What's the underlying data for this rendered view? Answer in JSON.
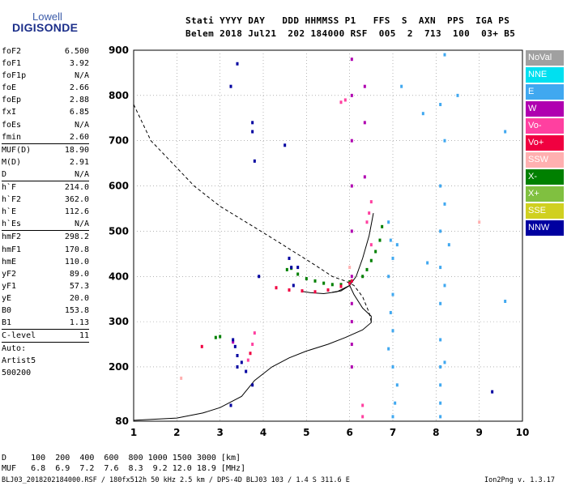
{
  "logo": {
    "top": "Lowell",
    "bottom": "DIGISONDE"
  },
  "header": {
    "line1": "Stati YYYY DAY   DDD HHMMSS P1   FFS  S  AXN  PPS  IGA PS",
    "line2": "Belem 2018 Jul21  202 184000 RSF  005  2  713  100  03+ B5"
  },
  "params": [
    [
      "foF2",
      "6.500"
    ],
    [
      "foF1",
      "3.92"
    ],
    [
      "foF1p",
      "N/A"
    ],
    [
      "foE",
      "2.66"
    ],
    [
      "foEp",
      "2.88"
    ],
    [
      "fxI",
      "6.85"
    ],
    [
      "foEs",
      "N/A"
    ],
    [
      "fmin",
      "2.60"
    ],
    [
      "MUF(D)",
      "18.90"
    ],
    [
      "M(D)",
      "2.91"
    ],
    [
      "D",
      "N/A"
    ],
    [
      "h`F",
      "214.0"
    ],
    [
      "h`F2",
      "362.0"
    ],
    [
      "h`E",
      "112.6"
    ],
    [
      "h`Es",
      "N/A"
    ],
    [
      "hmF2",
      "298.2"
    ],
    [
      "hmF1",
      "170.8"
    ],
    [
      "hmE",
      "110.0"
    ],
    [
      "yF2",
      "89.0"
    ],
    [
      "yF1",
      "57.3"
    ],
    [
      "yE",
      "20.0"
    ],
    [
      "B0",
      "153.8"
    ],
    [
      "B1",
      "1.13"
    ],
    [
      "C-level",
      "11"
    ],
    [
      "Auto:",
      ""
    ],
    [
      "Artist5",
      ""
    ],
    [
      "500200",
      ""
    ]
  ],
  "legend": [
    {
      "label": "NoVal",
      "color": "#a0a0a0"
    },
    {
      "label": "NNE",
      "color": "#00e0f0"
    },
    {
      "label": "E",
      "color": "#40a8f0"
    },
    {
      "label": "W",
      "color": "#b000b0"
    },
    {
      "label": "Vo-",
      "color": "#ff40a0"
    },
    {
      "label": "Vo+",
      "color": "#f00040"
    },
    {
      "label": "SSW",
      "color": "#ffb0b0"
    },
    {
      "label": "X-",
      "color": "#008000"
    },
    {
      "label": "X+",
      "color": "#80c040"
    },
    {
      "label": "SSE",
      "color": "#d0d020"
    },
    {
      "label": "NNW",
      "color": "#0000a0"
    }
  ],
  "footer": {
    "row1": "D     100  200  400  600  800 1000 1500 3000 [km]",
    "row2": "MUF   6.8  6.9  7.2  7.6  8.3  9.2 12.0 18.9 [MHz]",
    "file": "BLJ03_2018202184000.RSF / 180fx512h 50 kHz 2.5 km / DPS-4D BLJ03 103 / 1.4 S 311.6 E",
    "version": "Ion2Png v. 1.3.17"
  },
  "chart_data": {
    "type": "scatter",
    "xlabel": "",
    "ylabel": "",
    "xlim": [
      1,
      10
    ],
    "ylim": [
      80,
      900
    ],
    "x_ticks": [
      1,
      2,
      3,
      4,
      5,
      6,
      7,
      8,
      9,
      10
    ],
    "y_ticks": [
      80,
      200,
      300,
      400,
      500,
      600,
      700,
      800,
      900
    ],
    "grid": "dotted",
    "series": [
      {
        "name": "X-",
        "color": "#008000",
        "points": [
          [
            4.55,
            415
          ],
          [
            4.65,
            418
          ],
          [
            4.8,
            405
          ],
          [
            5.0,
            395
          ],
          [
            5.2,
            390
          ],
          [
            5.4,
            385
          ],
          [
            5.6,
            382
          ],
          [
            5.8,
            382
          ],
          [
            6.0,
            388
          ],
          [
            6.3,
            400
          ],
          [
            6.4,
            415
          ],
          [
            6.5,
            435
          ],
          [
            6.6,
            455
          ],
          [
            6.7,
            480
          ],
          [
            6.75,
            510
          ],
          [
            2.9,
            265
          ],
          [
            3.0,
            267
          ]
        ]
      },
      {
        "name": "W",
        "color": "#b000b0",
        "points": [
          [
            6.05,
            880
          ],
          [
            6.05,
            800
          ],
          [
            6.05,
            700
          ],
          [
            6.05,
            600
          ],
          [
            6.05,
            500
          ],
          [
            6.05,
            400
          ],
          [
            6.05,
            340
          ],
          [
            6.05,
            300
          ],
          [
            6.05,
            250
          ],
          [
            6.05,
            200
          ],
          [
            6.35,
            820
          ],
          [
            6.35,
            740
          ],
          [
            6.35,
            620
          ],
          [
            3.3,
            255
          ]
        ]
      },
      {
        "name": "Vo-",
        "color": "#ff40a0",
        "points": [
          [
            5.8,
            785
          ],
          [
            5.9,
            790
          ],
          [
            6.4,
            520
          ],
          [
            6.45,
            540
          ],
          [
            6.5,
            565
          ],
          [
            6.5,
            470
          ],
          [
            3.65,
            215
          ],
          [
            3.75,
            250
          ],
          [
            3.8,
            275
          ],
          [
            6.3,
            115
          ],
          [
            6.3,
            90
          ]
        ]
      },
      {
        "name": "Vo+",
        "color": "#f00040",
        "points": [
          [
            4.3,
            375
          ],
          [
            4.6,
            370
          ],
          [
            4.9,
            368
          ],
          [
            5.2,
            366
          ],
          [
            5.5,
            370
          ],
          [
            5.8,
            378
          ],
          [
            6.0,
            385
          ],
          [
            6.05,
            390
          ],
          [
            2.58,
            245
          ],
          [
            3.7,
            230
          ]
        ]
      },
      {
        "name": "E",
        "color": "#40a8f0",
        "points": [
          [
            6.9,
            520
          ],
          [
            6.95,
            480
          ],
          [
            7.0,
            440
          ],
          [
            6.9,
            400
          ],
          [
            7.0,
            360
          ],
          [
            6.95,
            320
          ],
          [
            7.0,
            280
          ],
          [
            6.9,
            240
          ],
          [
            7.0,
            200
          ],
          [
            7.1,
            160
          ],
          [
            7.05,
            120
          ],
          [
            7.0,
            90
          ],
          [
            7.1,
            470
          ],
          [
            7.2,
            820
          ],
          [
            7.7,
            760
          ],
          [
            8.1,
            780
          ],
          [
            8.1,
            600
          ],
          [
            8.1,
            500
          ],
          [
            8.1,
            420
          ],
          [
            8.1,
            340
          ],
          [
            8.1,
            260
          ],
          [
            8.1,
            200
          ],
          [
            8.1,
            160
          ],
          [
            8.1,
            120
          ],
          [
            8.1,
            90
          ],
          [
            8.2,
            890
          ],
          [
            8.2,
            700
          ],
          [
            8.2,
            560
          ],
          [
            8.2,
            380
          ],
          [
            8.2,
            210
          ],
          [
            8.3,
            470
          ],
          [
            9.6,
            720
          ],
          [
            9.6,
            345
          ],
          [
            7.8,
            430
          ],
          [
            8.5,
            800
          ]
        ]
      },
      {
        "name": "NNW",
        "color": "#0000a0",
        "points": [
          [
            3.25,
            820
          ],
          [
            3.4,
            870
          ],
          [
            3.75,
            740
          ],
          [
            3.75,
            720
          ],
          [
            3.8,
            655
          ],
          [
            4.5,
            690
          ],
          [
            4.6,
            440
          ],
          [
            4.65,
            420
          ],
          [
            4.7,
            380
          ],
          [
            4.8,
            420
          ],
          [
            3.3,
            260
          ],
          [
            3.35,
            245
          ],
          [
            3.4,
            225
          ],
          [
            3.4,
            200
          ],
          [
            3.5,
            210
          ],
          [
            3.6,
            190
          ],
          [
            3.75,
            160
          ],
          [
            3.9,
            400
          ],
          [
            9.3,
            145
          ],
          [
            3.25,
            115
          ]
        ]
      },
      {
        "name": "SSW",
        "color": "#ffb0b0",
        "points": [
          [
            2.1,
            175
          ],
          [
            9.0,
            520
          ],
          [
            6.0,
            420
          ]
        ]
      }
    ],
    "profile_curve": [
      [
        1.0,
        82
      ],
      [
        2.0,
        87
      ],
      [
        2.6,
        98
      ],
      [
        3.0,
        110
      ],
      [
        3.5,
        135
      ],
      [
        3.8,
        170
      ],
      [
        4.2,
        200
      ],
      [
        4.6,
        220
      ],
      [
        5.0,
        235
      ],
      [
        5.5,
        250
      ],
      [
        5.9,
        265
      ],
      [
        6.3,
        282
      ],
      [
        6.5,
        298
      ],
      [
        6.5,
        312
      ],
      [
        6.3,
        330
      ],
      [
        6.1,
        360
      ],
      [
        6.0,
        380
      ],
      [
        5.7,
        366
      ],
      [
        5.4,
        362
      ],
      [
        5.1,
        364
      ],
      [
        4.9,
        367
      ]
    ],
    "trace_curve": [
      [
        5.6,
        365
      ],
      [
        5.8,
        368
      ],
      [
        6.0,
        380
      ],
      [
        6.15,
        400
      ],
      [
        6.3,
        440
      ],
      [
        6.45,
        490
      ],
      [
        6.55,
        540
      ]
    ],
    "dashed_curve": [
      [
        1.0,
        780
      ],
      [
        1.4,
        700
      ],
      [
        1.9,
        650
      ],
      [
        2.4,
        600
      ],
      [
        3.0,
        555
      ],
      [
        3.6,
        520
      ],
      [
        4.2,
        485
      ],
      [
        4.7,
        455
      ],
      [
        5.2,
        425
      ],
      [
        5.6,
        400
      ],
      [
        5.9,
        390
      ],
      [
        6.1,
        380
      ],
      [
        6.3,
        355
      ],
      [
        6.45,
        320
      ],
      [
        6.5,
        300
      ]
    ]
  }
}
